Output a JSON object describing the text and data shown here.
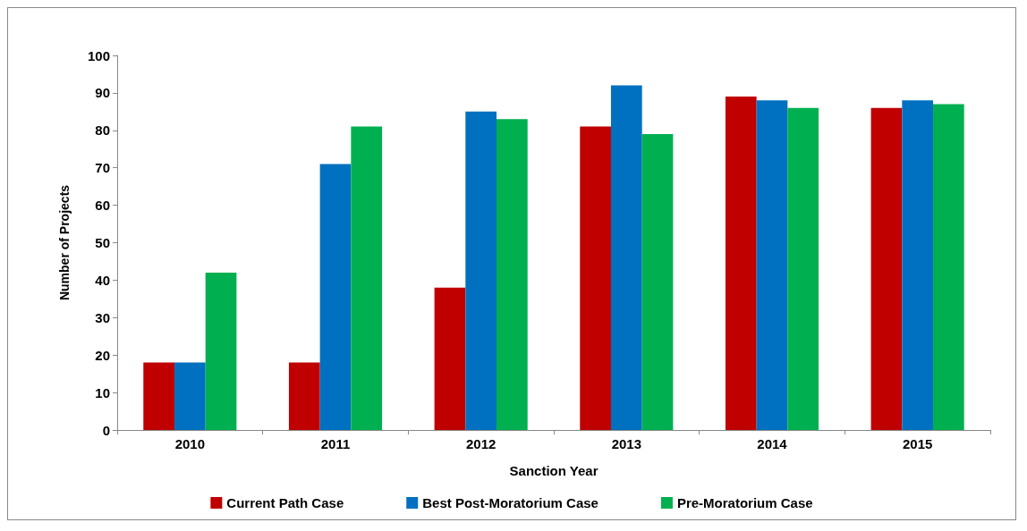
{
  "chart_data": {
    "type": "bar",
    "xlabel": "Sanction Year",
    "ylabel": "Number of Projects",
    "categories": [
      "2010",
      "2011",
      "2012",
      "2013",
      "2014",
      "2015"
    ],
    "series": [
      {
        "name": "Current Path Case",
        "color": "#c00000",
        "values": [
          18,
          18,
          38,
          81,
          89,
          86
        ]
      },
      {
        "name": "Best Post-Moratorium Case",
        "color": "#0070c0",
        "values": [
          18,
          71,
          85,
          92,
          88,
          88
        ]
      },
      {
        "name": "Pre-Moratorium Case",
        "color": "#00b050",
        "values": [
          42,
          81,
          83,
          79,
          86,
          87
        ]
      }
    ],
    "ylim": [
      0,
      100
    ],
    "yticks": [
      0,
      10,
      20,
      30,
      40,
      50,
      60,
      70,
      80,
      90,
      100
    ],
    "grid": false,
    "legend": "bottom"
  }
}
